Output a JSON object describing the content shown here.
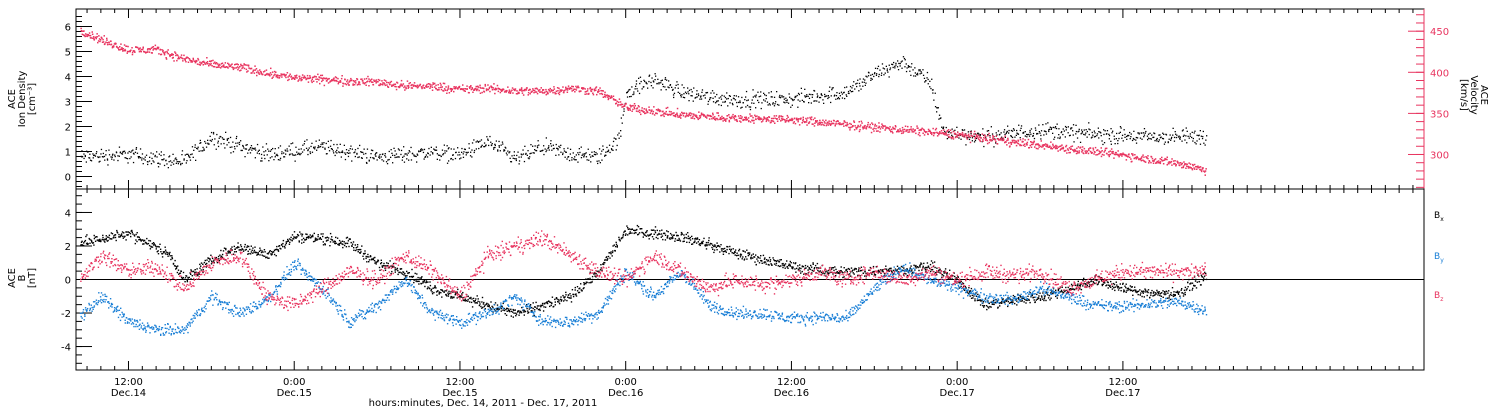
{
  "colors": {
    "black": "#000000",
    "red": "#e8345f",
    "blue": "#1a7fd6"
  },
  "chart_data": [
    {
      "type": "scatter",
      "panel": "top",
      "ylabel_lines": [
        "ACE",
        "Ion Density",
        "[cm⁻³]"
      ],
      "ylim": [
        -0.5,
        6.7
      ],
      "y_ticks": [
        0,
        1,
        2,
        3,
        4,
        5,
        6
      ],
      "y2label_lines": [
        "ACE",
        "Velocity",
        "[km/s]"
      ],
      "y2lim": [
        258,
        477
      ],
      "y2_ticks": [
        300,
        350,
        400,
        450
      ],
      "series": [
        {
          "color": "black",
          "axis": "left",
          "approx_trend": [
            [
              8.5,
              0.8
            ],
            [
              12,
              0.9
            ],
            [
              16,
              0.6
            ],
            [
              18,
              1.6
            ],
            [
              22,
              0.9
            ],
            [
              26,
              1.2
            ],
            [
              30,
              0.8
            ],
            [
              34,
              1.0
            ],
            [
              36,
              0.9
            ],
            [
              38,
              1.4
            ],
            [
              40,
              0.7
            ],
            [
              42,
              1.2
            ],
            [
              44,
              0.9
            ],
            [
              46,
              0.8
            ],
            [
              47.5,
              1.5
            ],
            [
              48,
              3.4
            ],
            [
              50,
              3.9
            ],
            [
              52,
              3.4
            ],
            [
              54,
              3.2
            ],
            [
              56,
              3.1
            ],
            [
              60,
              3.1
            ],
            [
              64,
              3.4
            ],
            [
              66,
              4.1
            ],
            [
              68,
              4.6
            ],
            [
              70,
              3.8
            ],
            [
              71,
              1.8
            ],
            [
              74,
              1.6
            ],
            [
              78,
              1.9
            ],
            [
              82,
              1.7
            ],
            [
              86,
              1.6
            ],
            [
              90,
              1.6
            ]
          ]
        },
        {
          "color": "red",
          "axis": "right",
          "approx_trend": [
            [
              8.5,
              452
            ],
            [
              10,
              440
            ],
            [
              12,
              428
            ],
            [
              14,
              428
            ],
            [
              16,
              417
            ],
            [
              18,
              410
            ],
            [
              20,
              407
            ],
            [
              22,
              400
            ],
            [
              24,
              394
            ],
            [
              26,
              392
            ],
            [
              28,
              390
            ],
            [
              30,
              389
            ],
            [
              32,
              384
            ],
            [
              34,
              384
            ],
            [
              36,
              380
            ],
            [
              38,
              381
            ],
            [
              40,
              378
            ],
            [
              42,
              378
            ],
            [
              44,
              381
            ],
            [
              46,
              378
            ],
            [
              48,
              358
            ],
            [
              52,
              349
            ],
            [
              56,
              345
            ],
            [
              60,
              343
            ],
            [
              64,
              337
            ],
            [
              68,
              331
            ],
            [
              72,
              325
            ],
            [
              76,
              316
            ],
            [
              80,
              308
            ],
            [
              84,
              300
            ],
            [
              88,
              290
            ],
            [
              90,
              282
            ]
          ]
        }
      ]
    },
    {
      "type": "scatter",
      "panel": "bottom",
      "ylabel_lines": [
        "ACE",
        "B",
        "[nT]"
      ],
      "ylim": [
        -5.4,
        5.4
      ],
      "y_ticks": [
        -4,
        -2,
        0,
        2,
        4
      ],
      "zero_line": true,
      "series": [
        {
          "name": "B",
          "sub": "x",
          "color": "black",
          "approx_trend": [
            [
              8.5,
              2.2
            ],
            [
              12,
              2.8
            ],
            [
              15,
              1.5
            ],
            [
              16,
              0.0
            ],
            [
              18,
              1.2
            ],
            [
              20,
              2.0
            ],
            [
              22,
              1.5
            ],
            [
              24,
              2.6
            ],
            [
              26,
              2.5
            ],
            [
              28,
              2.2
            ],
            [
              30,
              1.0
            ],
            [
              32,
              0.5
            ],
            [
              34,
              -0.5
            ],
            [
              36,
              -1.0
            ],
            [
              38,
              -1.5
            ],
            [
              40,
              -2.0
            ],
            [
              42,
              -1.5
            ],
            [
              44,
              -1.0
            ],
            [
              46,
              0.5
            ],
            [
              48,
              3.0
            ],
            [
              50,
              2.8
            ],
            [
              52,
              2.6
            ],
            [
              54,
              2.1
            ],
            [
              56,
              1.6
            ],
            [
              58,
              1.2
            ],
            [
              60,
              0.8
            ],
            [
              62,
              0.6
            ],
            [
              64,
              0.5
            ],
            [
              68,
              0.6
            ],
            [
              70,
              0.8
            ],
            [
              72,
              0.0
            ],
            [
              74,
              -1.5
            ],
            [
              76,
              -1.2
            ],
            [
              78,
              -1.0
            ],
            [
              80,
              -0.5
            ],
            [
              82,
              0.0
            ],
            [
              84,
              -0.5
            ],
            [
              86,
              -0.8
            ],
            [
              88,
              -0.8
            ],
            [
              90,
              0.3
            ]
          ]
        },
        {
          "name": "B",
          "sub": "y",
          "color": "blue",
          "approx_trend": [
            [
              8.5,
              -2.2
            ],
            [
              10,
              -1.0
            ],
            [
              12,
              -2.5
            ],
            [
              14,
              -3.0
            ],
            [
              16,
              -3.0
            ],
            [
              18,
              -1.0
            ],
            [
              20,
              -2.0
            ],
            [
              22,
              -1.2
            ],
            [
              24,
              1.0
            ],
            [
              26,
              -0.5
            ],
            [
              28,
              -2.5
            ],
            [
              30,
              -1.5
            ],
            [
              32,
              0.0
            ],
            [
              34,
              -2.0
            ],
            [
              36,
              -2.5
            ],
            [
              38,
              -2.0
            ],
            [
              40,
              -1.0
            ],
            [
              42,
              -2.5
            ],
            [
              44,
              -2.5
            ],
            [
              46,
              -2.0
            ],
            [
              48,
              0.5
            ],
            [
              50,
              -1.0
            ],
            [
              52,
              0.5
            ],
            [
              54,
              -1.5
            ],
            [
              56,
              -2.0
            ],
            [
              58,
              -2.0
            ],
            [
              60,
              -2.3
            ],
            [
              62,
              -2.2
            ],
            [
              64,
              -2.3
            ],
            [
              66,
              -0.5
            ],
            [
              68,
              0.8
            ],
            [
              70,
              0.0
            ],
            [
              72,
              -0.5
            ],
            [
              74,
              -1.0
            ],
            [
              76,
              -1.2
            ],
            [
              78,
              -0.5
            ],
            [
              80,
              -1.0
            ],
            [
              82,
              -1.5
            ],
            [
              84,
              -1.6
            ],
            [
              86,
              -1.4
            ],
            [
              88,
              -1.3
            ],
            [
              90,
              -1.8
            ]
          ]
        },
        {
          "name": "B",
          "sub": "z",
          "color": "red",
          "approx_trend": [
            [
              8.5,
              0.0
            ],
            [
              10,
              1.5
            ],
            [
              12,
              0.5
            ],
            [
              14,
              0.8
            ],
            [
              16,
              -0.5
            ],
            [
              18,
              1.0
            ],
            [
              20,
              1.5
            ],
            [
              22,
              -1.0
            ],
            [
              24,
              -1.5
            ],
            [
              26,
              -0.5
            ],
            [
              28,
              0.5
            ],
            [
              30,
              0.0
            ],
            [
              32,
              1.5
            ],
            [
              34,
              0.5
            ],
            [
              36,
              -1.0
            ],
            [
              38,
              1.5
            ],
            [
              40,
              2.0
            ],
            [
              42,
              2.5
            ],
            [
              44,
              1.5
            ],
            [
              46,
              0.5
            ],
            [
              48,
              0.0
            ],
            [
              50,
              1.5
            ],
            [
              52,
              0.5
            ],
            [
              54,
              -0.5
            ],
            [
              56,
              0.0
            ],
            [
              58,
              -0.3
            ],
            [
              60,
              0.0
            ],
            [
              62,
              0.5
            ],
            [
              64,
              0.0
            ],
            [
              66,
              0.5
            ],
            [
              68,
              0.0
            ],
            [
              70,
              0.5
            ],
            [
              72,
              0.0
            ],
            [
              74,
              0.5
            ],
            [
              76,
              0.3
            ],
            [
              78,
              0.5
            ],
            [
              80,
              -0.5
            ],
            [
              82,
              0.0
            ],
            [
              84,
              0.5
            ],
            [
              86,
              0.5
            ],
            [
              88,
              0.5
            ],
            [
              90,
              0.5
            ]
          ]
        }
      ]
    }
  ],
  "x_axis": {
    "xlim": [
      8.2,
      105.8
    ],
    "ticks": [
      {
        "hour": 12,
        "line1": "12:00",
        "line2": "Dec.14"
      },
      {
        "hour": 24,
        "line1": "0:00",
        "line2": "Dec.15"
      },
      {
        "hour": 36,
        "line1": "12:00",
        "line2": "Dec.15"
      },
      {
        "hour": 48,
        "line1": "0:00",
        "line2": "Dec.16"
      },
      {
        "hour": 60,
        "line1": "12:00",
        "line2": "Dec.16"
      },
      {
        "hour": 72,
        "line1": "0:00",
        "line2": "Dec.17"
      },
      {
        "hour": 84,
        "line1": "12:00",
        "line2": "Dec.17"
      }
    ],
    "minor_step_hours": 1,
    "title": "hours:minutes, Dec. 14, 2011 - Dec. 17, 2011"
  }
}
